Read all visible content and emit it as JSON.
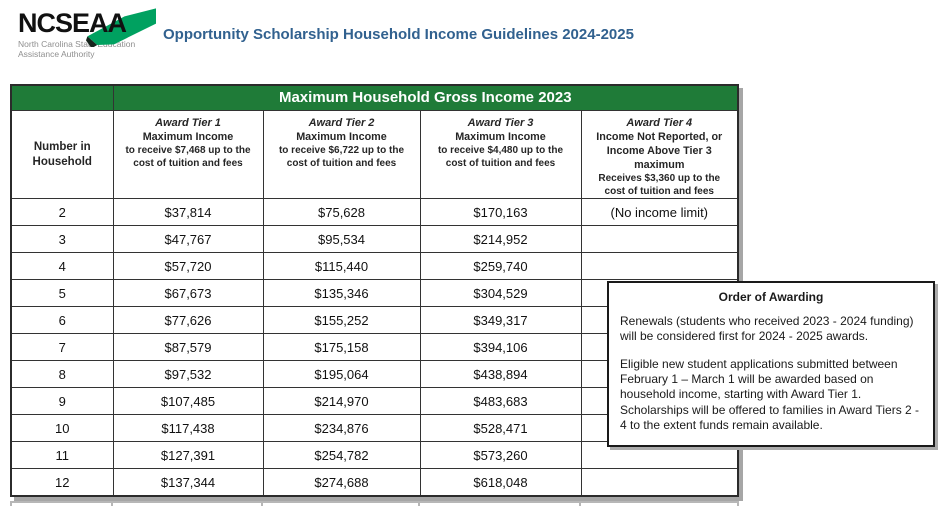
{
  "page_title": "Opportunity Scholarship Household Income Guidelines 2024-2025",
  "logo": {
    "acronym": "NCSEAA",
    "org_line1": "North Carolina State Education",
    "org_line2": "Assistance Authority"
  },
  "colors": {
    "banner_green": "#1f7b38",
    "title_blue": "#31618f",
    "logo_green": "#00a160",
    "muted_value_gray": "#7f7f7f"
  },
  "table": {
    "banner": "Maximum Household Gross Income 2023",
    "row_header": {
      "lines": [
        "Number in",
        "Household"
      ]
    },
    "columns": [
      {
        "tier": "Award Tier 1",
        "main_lines": [
          "Maximum Income"
        ],
        "small_lines": [
          "to receive $7,468 up to the",
          "cost of tuition and fees"
        ]
      },
      {
        "tier": "Award Tier 2",
        "main_lines": [
          "Maximum Income"
        ],
        "small_lines": [
          "to receive $6,722 up to the",
          "cost of tuition and fees"
        ]
      },
      {
        "tier": "Award Tier 3",
        "main_lines": [
          "Maximum Income"
        ],
        "small_lines": [
          "to receive $4,480 up to the",
          "cost of tuition and fees"
        ]
      },
      {
        "tier": "Award Tier 4",
        "main_lines": [
          "Income Not Reported, or",
          "Income Above Tier 3 maximum"
        ],
        "small_lines": [
          "Receives $3,360 up to the",
          "cost of tuition and fees"
        ]
      }
    ],
    "rows": [
      {
        "household": "2",
        "tier1": "$37,814",
        "tier2": "$75,628",
        "tier3": "$170,163",
        "tier4": "(No income limit)",
        "tier3_muted": true
      },
      {
        "household": "3",
        "tier1": "$47,767",
        "tier2": "$95,534",
        "tier3": "$214,952",
        "tier4": ""
      },
      {
        "household": "4",
        "tier1": "$57,720",
        "tier2": "$115,440",
        "tier3": "$259,740",
        "tier4": ""
      },
      {
        "household": "5",
        "tier1": "$67,673",
        "tier2": "$135,346",
        "tier3": "$304,529",
        "tier4": ""
      },
      {
        "household": "6",
        "tier1": "$77,626",
        "tier2": "$155,252",
        "tier3": "$349,317",
        "tier4": ""
      },
      {
        "household": "7",
        "tier1": "$87,579",
        "tier2": "$175,158",
        "tier3": "$394,106",
        "tier4": ""
      },
      {
        "household": "8",
        "tier1": "$97,532",
        "tier2": "$195,064",
        "tier3": "$438,894",
        "tier4": ""
      },
      {
        "household": "9",
        "tier1": "$107,485",
        "tier2": "$214,970",
        "tier3": "$483,683",
        "tier4": ""
      },
      {
        "household": "10",
        "tier1": "$117,438",
        "tier2": "$234,876",
        "tier3": "$528,471",
        "tier4": ""
      },
      {
        "household": "11",
        "tier1": "$127,391",
        "tier2": "$254,782",
        "tier3": "$573,260",
        "tier4": ""
      },
      {
        "household": "12",
        "tier1": "$137,344",
        "tier2": "$274,688",
        "tier3": "$618,048",
        "tier4": ""
      }
    ]
  },
  "order_box": {
    "title": "Order of Awarding",
    "paragraphs": [
      "Renewals (students who received 2023 - 2024 funding) will be considered first for 2024 - 2025 awards.",
      "Eligible new student applications submitted between February 1 – March 1 will be awarded based on household income, starting with Award Tier 1. Scholarships will be offered to families in Award Tiers 2 - 4 to the extent funds remain available."
    ]
  }
}
